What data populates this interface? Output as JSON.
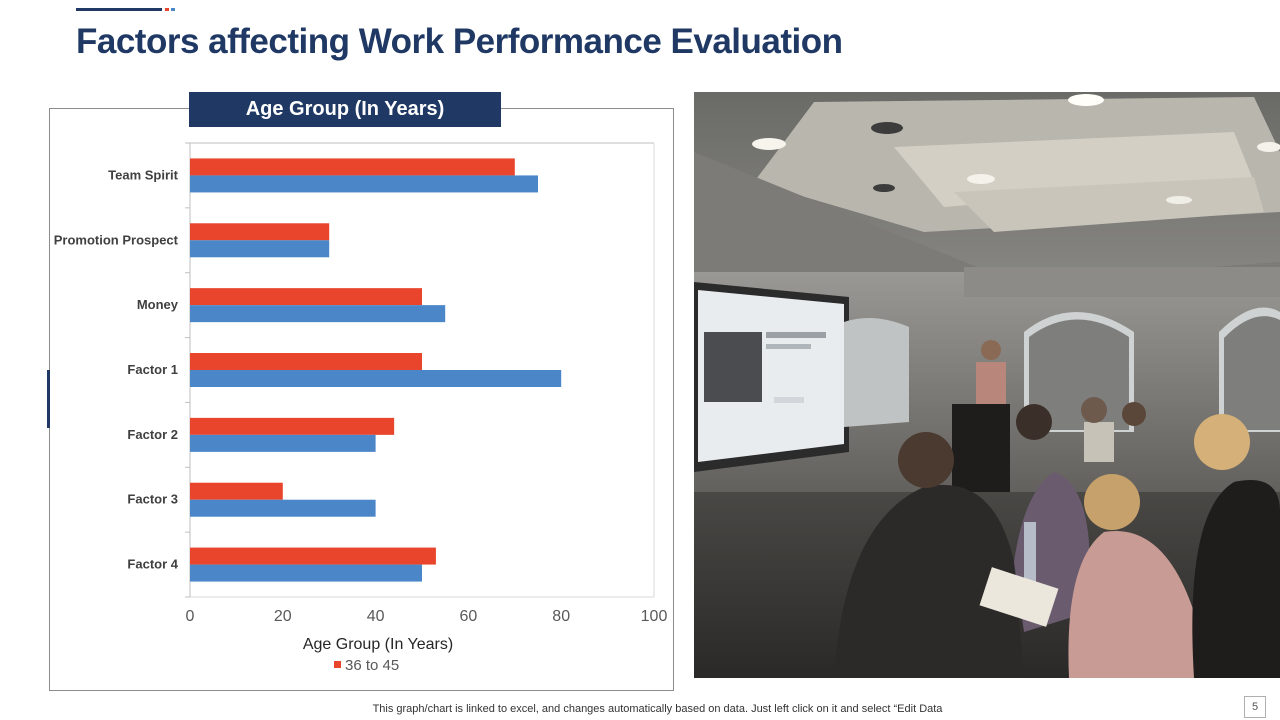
{
  "slide": {
    "title": "Factors affecting Work Performance Evaluation",
    "chart_header": "Age Group (In Years)",
    "footer_note": "This graph/chart is linked to excel,  and changes automatically based on data. Just left click on it and select “Edit Data",
    "page_number": "5"
  },
  "colors": {
    "brand_navy": "#1f3864",
    "series_red": "#e8452c",
    "series_blue": "#4a86c8"
  },
  "chart_data": {
    "type": "bar",
    "orientation": "horizontal",
    "categories": [
      "Team Spirit",
      "Promotion Prospect",
      "Money",
      "Factor 1",
      "Factor 2",
      "Factor 3",
      "Factor 4"
    ],
    "series": [
      {
        "name": "36 to 45",
        "color": "#e8452c",
        "values": [
          70,
          30,
          50,
          50,
          44,
          20,
          53
        ]
      },
      {
        "color": "#4a86c8",
        "values": [
          75,
          30,
          55,
          80,
          40,
          40,
          50
        ]
      }
    ],
    "xlabel": "Age Group (In Years)",
    "xlim": [
      0,
      100
    ],
    "xticks": [
      "0",
      "20",
      "40",
      "60",
      "80",
      "100"
    ],
    "legend": {
      "position": "bottom",
      "entries": [
        "36 to 45"
      ]
    },
    "grid": false
  },
  "photo": {
    "description_icon": "presentation-meeting-photo"
  }
}
